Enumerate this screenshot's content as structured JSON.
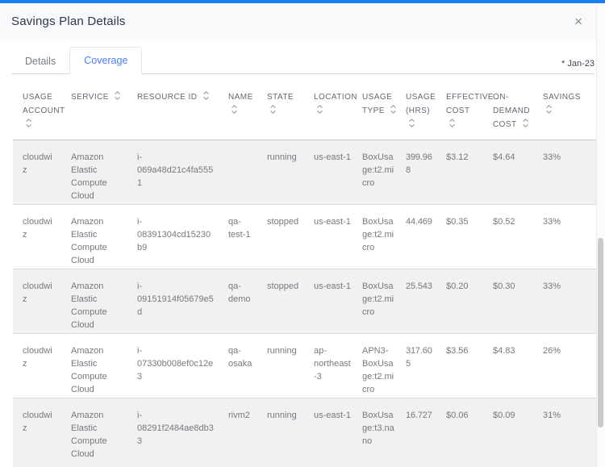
{
  "modal": {
    "title": "Savings Plan Details",
    "close_icon": "×",
    "period_label": "* Jan-23",
    "tabs": [
      {
        "label": "Details",
        "active": false
      },
      {
        "label": "Coverage",
        "active": true
      }
    ]
  },
  "colors": {
    "accent_top_bar": "#1b7ff2",
    "active_tab_text": "#4a7df6",
    "alt_row_background": "#f1f1f2",
    "body_text": "#75797e",
    "header_text": "#5f6974"
  },
  "icons": {
    "close": "close-icon",
    "sort": "sort-updown-icon"
  },
  "table": {
    "columns": [
      "USAGE ACCOUNT",
      "SERVICE",
      "RESOURCE ID",
      "NAME",
      "STATE",
      "LOCATION",
      "USAGE TYPE",
      "USAGE (HRS)",
      "EFFECTIVE COST",
      "ON-DEMAND COST",
      "SAVINGS"
    ],
    "rows": [
      [
        "cloudwiz",
        "Amazon Elastic Compute Cloud",
        "i-069a48d21c4fa5551",
        "",
        "running",
        "us-east-1",
        "BoxUsage:t2.micro",
        "399.968",
        "$3.12",
        "$4.64",
        "33%"
      ],
      [
        "cloudwiz",
        "Amazon Elastic Compute Cloud",
        "i-08391304cd15230b9",
        "qa-test-1",
        "stopped",
        "us-east-1",
        "BoxUsage:t2.micro",
        "44.469",
        "$0.35",
        "$0.52",
        "33%"
      ],
      [
        "cloudwiz",
        "Amazon Elastic Compute Cloud",
        "i-09151914f05679e5d",
        "qa-demo",
        "stopped",
        "us-east-1",
        "BoxUsage:t2.micro",
        "25.543",
        "$0.20",
        "$0.30",
        "33%"
      ],
      [
        "cloudwiz",
        "Amazon Elastic Compute Cloud",
        "i-07330b008ef0c12e3",
        "qa-osaka",
        "running",
        "ap-northeast-3",
        "APN3-BoxUsage:t2.micro",
        "317.605",
        "$3.56",
        "$4.83",
        "26%"
      ],
      [
        "cloudwiz",
        "Amazon Elastic Compute Cloud",
        "i-08291f2484ae8db33",
        "rivm2",
        "running",
        "us-east-1",
        "BoxUsage:t3.nano",
        "16.727",
        "$0.06",
        "$0.09",
        "31%"
      ]
    ]
  }
}
